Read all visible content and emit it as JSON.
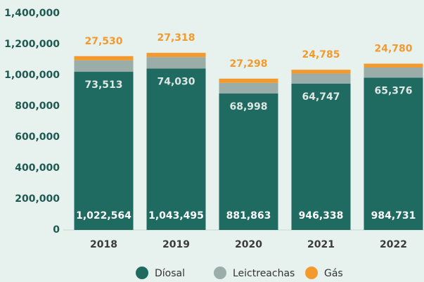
{
  "chart_data": {
    "type": "stacked-bar",
    "categories": [
      "2018",
      "2019",
      "2020",
      "2021",
      "2022"
    ],
    "series": [
      {
        "name": "Díosal",
        "color": "#1f6b62",
        "values": [
          1022564,
          1043495,
          881863,
          946338,
          984731
        ],
        "value_labels": [
          "1,022,564",
          "1,043,495",
          "881,863",
          "946,338",
          "984,731"
        ]
      },
      {
        "name": "Leictreachas",
        "color": "#9bada8",
        "values": [
          73513,
          74030,
          68998,
          64747,
          65376
        ],
        "value_labels": [
          "73,513",
          "74,030",
          "68,998",
          "64,747",
          "65,376"
        ]
      },
      {
        "name": "Gás",
        "color": "#f39a2e",
        "values": [
          27530,
          27318,
          27298,
          24785,
          24780
        ],
        "value_labels": [
          "27,530",
          "27,318",
          "27,298",
          "24,785",
          "24,780"
        ]
      }
    ],
    "ylim": [
      0,
      1400000
    ],
    "yticks": [
      0,
      {
        "value": 200000,
        "label": "200,000"
      },
      {
        "value": 400000,
        "label": "400,000"
      },
      {
        "value": 600000,
        "label": "600,000"
      },
      {
        "value": 800000,
        "label": "800,000"
      },
      {
        "value": 1000000,
        "label": "1,000,000"
      },
      {
        "value": 1200000,
        "label": "1,200,000"
      },
      {
        "value": 1400000,
        "label": "1,400,000"
      }
    ],
    "grid": false,
    "legend": "bottom"
  }
}
